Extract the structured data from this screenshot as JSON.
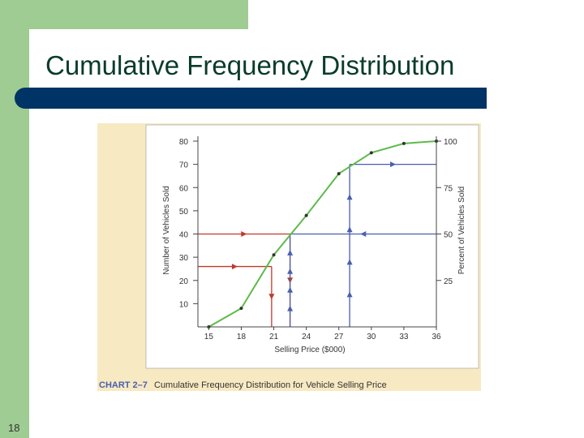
{
  "slide": {
    "title": "Cumulative Frequency Distribution",
    "number": "18"
  },
  "colors": {
    "sidebar_green": "#9ecc92",
    "title_text": "#0a3b2c",
    "title_rule": "#003366",
    "figure_bg": "#f7e9c2",
    "plot_bg": "#ffffff",
    "curve": "#5dbb4a",
    "guide_red": "#c0392b",
    "guide_blue": "#4a5fae"
  },
  "chart_data": {
    "type": "line",
    "caption_label": "CHART 2–7",
    "caption": "Cumulative Frequency Distribution for Vehicle Selling Price",
    "xlabel": "Selling Price ($000)",
    "ylabel": "Number of Vehicles Sold",
    "ylabel_right": "Percent of Vehicles Sold",
    "x_ticks": [
      15,
      18,
      21,
      24,
      27,
      30,
      33,
      36
    ],
    "y_ticks": [
      10,
      20,
      30,
      40,
      50,
      60,
      70,
      80
    ],
    "y_right_ticks": [
      25,
      50,
      75,
      100
    ],
    "xlim": [
      14,
      36
    ],
    "ylim": [
      0,
      80
    ],
    "series": [
      {
        "x": [
          15,
          18,
          21,
          24,
          27,
          30,
          33,
          36
        ],
        "y": [
          0,
          8,
          31,
          48,
          66,
          75,
          79,
          80
        ]
      }
    ],
    "guides": [
      {
        "color": "red",
        "from_y": 26,
        "to_x": 20.8
      },
      {
        "color": "red",
        "from_y": 40,
        "to_x": 22.5
      },
      {
        "color": "blue",
        "from_y": 40,
        "to_x": 22.5
      },
      {
        "color": "blue",
        "from_y": 70,
        "to_x": 28.0
      }
    ]
  }
}
